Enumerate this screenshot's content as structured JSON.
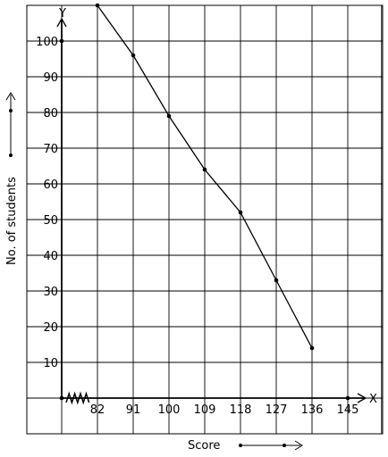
{
  "chart_data": {
    "type": "line",
    "title": "",
    "xlabel": "Score",
    "ylabel": "No. of students",
    "x_axis_letter": "X",
    "y_axis_letter": "Y",
    "x_ticks": [
      82,
      91,
      100,
      109,
      118,
      127,
      136,
      145
    ],
    "y_ticks": [
      10,
      20,
      30,
      40,
      50,
      60,
      70,
      80,
      90,
      100
    ],
    "x_tick_labels": [
      "82",
      "91",
      "100",
      "109",
      "118",
      "127",
      "136",
      "145"
    ],
    "y_tick_labels": [
      "10",
      "20",
      "30",
      "40",
      "50",
      "60",
      "70",
      "80",
      "90",
      "100"
    ],
    "xlim": [
      73,
      153.5
    ],
    "ylim": [
      0,
      110
    ],
    "x_axis_break": true,
    "grid": true,
    "series": [
      {
        "x": [
          82,
          91,
          100,
          109,
          118,
          127,
          136
        ],
        "y": [
          110,
          96,
          79,
          64,
          52,
          33,
          14
        ]
      }
    ],
    "origin_point": [
      73,
      0
    ],
    "y_axis_point": [
      73,
      100
    ],
    "x_axis_point": [
      145,
      0
    ]
  }
}
